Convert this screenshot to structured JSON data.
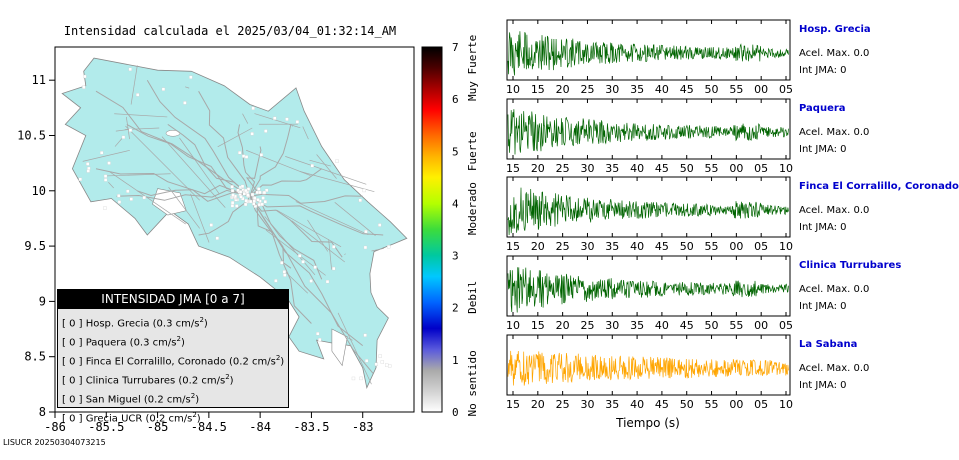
{
  "map": {
    "title": "Intensidad calculada el 2025/03/04_01:32:14_AM",
    "x_ticks": [
      "-86",
      "-85.5",
      "-85",
      "-84.5",
      "-84",
      "-83.5",
      "-83"
    ],
    "y_ticks": [
      "11",
      "10.5",
      "10",
      "9.5",
      "9",
      "8.5",
      "8"
    ],
    "land_color": "#b2ebeb",
    "road_color": "#a8a8a8"
  },
  "colorbar": {
    "ticks": [
      "7",
      "6",
      "5",
      "4",
      "3",
      "2",
      "1",
      "0"
    ],
    "labels": [
      "Muy Fuerte",
      "Fuerte",
      "Moderado",
      "Debil",
      "No sentido"
    ]
  },
  "legend": {
    "title": "INTENSIDAD JMA [0 a 7]",
    "items": [
      {
        "level": "[ 0 ]",
        "name": "Hosp. Grecia",
        "accel": "(0.3 cm/s",
        "sup": "2",
        ")": ")"
      },
      {
        "level": "[ 0 ]",
        "name": "Paquera",
        "accel": "(0.3 cm/s",
        "sup": "2",
        ")": ")"
      },
      {
        "level": "[ 0 ]",
        "name": "Finca El Corralillo, Coronado",
        "accel": "(0.2 cm/s",
        "sup": "2",
        ")": ")"
      },
      {
        "level": "[ 0 ]",
        "name": "Clinica Turrubares",
        "accel": "(0.2 cm/s",
        "sup": "2",
        ")": ")"
      },
      {
        "level": "[ 0 ]",
        "name": "San Miguel",
        "accel": "(0.2 cm/s",
        "sup": "2",
        ")": ")"
      },
      {
        "level": "[ 0 ]",
        "name": "Grecia UCR",
        "accel": "(0.2 cm/s",
        "sup": "2",
        ")": ")"
      }
    ]
  },
  "footer": "LISUCR 20250304073215",
  "waveforms": {
    "xlabel": "Tiempo (s)",
    "stations": [
      {
        "name": "Hosp. Grecia",
        "accel": "Acel. Max. 0.0",
        "int": "Int JMA: 0",
        "color": "#006400",
        "ticks": [
          "10",
          "15",
          "20",
          "25",
          "30",
          "35",
          "40",
          "45",
          "50",
          "55",
          "00",
          "05"
        ]
      },
      {
        "name": "Paquera",
        "accel": "Acel. Max. 0.0",
        "int": "Int JMA: 0",
        "color": "#006400",
        "ticks": [
          "15",
          "20",
          "25",
          "30",
          "35",
          "40",
          "45",
          "50",
          "55",
          "00",
          "05",
          "10"
        ]
      },
      {
        "name": "Finca El Corralillo, Coronado",
        "accel": "Acel. Max. 0.0",
        "int": "Int JMA: 0",
        "color": "#006400",
        "ticks": [
          "15",
          "20",
          "25",
          "30",
          "35",
          "40",
          "45",
          "50",
          "55",
          "00",
          "05",
          "10"
        ]
      },
      {
        "name": "Clinica Turrubares",
        "accel": "Acel. Max. 0.0",
        "int": "Int JMA: 0",
        "color": "#006400",
        "ticks": [
          "10",
          "15",
          "20",
          "25",
          "30",
          "35",
          "40",
          "45",
          "50",
          "55",
          "00",
          "05"
        ]
      },
      {
        "name": "La Sabana",
        "accel": "Acel. Max. 0.0",
        "int": "Int JMA: 0",
        "color": "#ffa500",
        "ticks": [
          "15",
          "20",
          "25",
          "30",
          "35",
          "40",
          "45",
          "50",
          "55",
          "00",
          "05",
          "10"
        ]
      }
    ]
  },
  "chart_data": {
    "type": "line",
    "title": "Intensidad calculada el 2025/03/04_01:32:14_AM",
    "xlabel": "Tiempo (s)",
    "series": [
      {
        "name": "Hosp. Grecia",
        "peak_acceleration": 0.3,
        "acel_max": 0.0,
        "int_jma": 0
      },
      {
        "name": "Paquera",
        "peak_acceleration": 0.3,
        "acel_max": 0.0,
        "int_jma": 0
      },
      {
        "name": "Finca El Corralillo, Coronado",
        "peak_acceleration": 0.2,
        "acel_max": 0.0,
        "int_jma": 0
      },
      {
        "name": "Clinica Turrubares",
        "peak_acceleration": 0.2,
        "acel_max": 0.0,
        "int_jma": 0
      },
      {
        "name": "La Sabana",
        "acel_max": 0.0,
        "int_jma": 0
      }
    ],
    "map_xlim": [
      -86,
      -82.5
    ],
    "map_ylim": [
      8,
      11.3
    ],
    "colorbar_range": [
      0,
      7
    ]
  }
}
